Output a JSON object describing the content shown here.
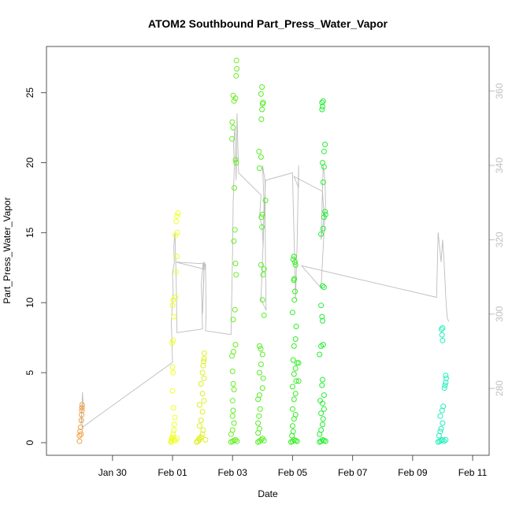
{
  "chart_data": {
    "type": "scatter",
    "title": "ATOM2 Southbound Part_Press_Water_Vapor",
    "xlabel": "Date",
    "ylabel": "Part_Press_Water_Vapor",
    "x_ticks": [
      "Jan 30",
      "Feb 01",
      "Feb 03",
      "Feb 05",
      "Feb 07",
      "Feb 09",
      "Feb 11"
    ],
    "x_tick_positions": [
      1,
      3,
      5,
      7,
      9,
      11,
      13
    ],
    "xlim": [
      -1.2,
      13.55
    ],
    "y_ticks": [
      0,
      5,
      10,
      15,
      20,
      25
    ],
    "ylim": [
      -0.9,
      28.3
    ],
    "y2_ticks": [
      280,
      300,
      320,
      340,
      360
    ],
    "y2lim": [
      262,
      372
    ],
    "colors": {
      "frame": "#555555",
      "secondary_axis": "#bfbfbf",
      "trajectory_line": "#bdbdbd"
    },
    "series": [
      {
        "color": "#f0a040",
        "points": [
          [
            -0.1,
            0.1
          ],
          [
            -0.1,
            0.5
          ],
          [
            -0.08,
            0.8
          ],
          [
            -0.06,
            1.1
          ],
          [
            -0.04,
            1.6
          ],
          [
            -0.03,
            2.0
          ],
          [
            -0.02,
            2.3
          ],
          [
            -0.02,
            2.5
          ],
          [
            -0.01,
            2.7
          ],
          [
            -0.05,
            0.6
          ]
        ]
      },
      {
        "color": "#eeff22",
        "points": [
          [
            2.95,
            0.05
          ],
          [
            2.96,
            0.1
          ],
          [
            2.97,
            0.2
          ],
          [
            2.98,
            0.3
          ],
          [
            3.0,
            0.4
          ],
          [
            3.02,
            0.6
          ],
          [
            3.04,
            0.9
          ],
          [
            3.06,
            1.3
          ],
          [
            3.08,
            1.8
          ],
          [
            3.03,
            2.5
          ],
          [
            3.0,
            3.7
          ],
          [
            3.02,
            5.0
          ],
          [
            3.0,
            5.4
          ],
          [
            2.98,
            7.1
          ],
          [
            3.02,
            7.3
          ],
          [
            3.05,
            9.0
          ],
          [
            3.0,
            9.8
          ],
          [
            3.02,
            10.2
          ],
          [
            3.1,
            10.4
          ],
          [
            3.12,
            12.2
          ],
          [
            3.14,
            13.3
          ],
          [
            3.1,
            14.8
          ],
          [
            3.16,
            15.0
          ],
          [
            3.12,
            15.8
          ],
          [
            3.15,
            16.2
          ],
          [
            3.18,
            16.4
          ],
          [
            3.05,
            0.2
          ],
          [
            3.1,
            0.15
          ],
          [
            3.15,
            0.3
          ]
        ]
      },
      {
        "color": "#ddee22",
        "points": [
          [
            3.8,
            0.05
          ],
          [
            3.85,
            0.1
          ],
          [
            3.9,
            0.2
          ],
          [
            3.95,
            0.4
          ],
          [
            4.0,
            0.6
          ],
          [
            4.02,
            0.9
          ],
          [
            3.9,
            1.2
          ],
          [
            3.95,
            1.6
          ],
          [
            4.0,
            2.2
          ],
          [
            3.9,
            2.7
          ],
          [
            4.05,
            3.0
          ],
          [
            4.0,
            3.5
          ],
          [
            3.95,
            4.2
          ],
          [
            4.05,
            4.6
          ],
          [
            4.0,
            5.0
          ],
          [
            4.02,
            5.5
          ],
          [
            4.05,
            6.0
          ],
          [
            4.06,
            6.4
          ],
          [
            4.04,
            5.8
          ],
          [
            4.1,
            0.2
          ],
          [
            3.88,
            0.3
          ]
        ]
      },
      {
        "color": "#66ee22",
        "points": [
          [
            4.95,
            0.05
          ],
          [
            5.0,
            0.1
          ],
          [
            5.05,
            0.15
          ],
          [
            5.1,
            0.2
          ],
          [
            5.15,
            0.1
          ],
          [
            4.95,
            0.6
          ],
          [
            5.0,
            0.9
          ],
          [
            5.05,
            1.4
          ],
          [
            5.0,
            1.9
          ],
          [
            5.02,
            2.3
          ],
          [
            5.0,
            3.0
          ],
          [
            5.05,
            3.8
          ],
          [
            5.02,
            4.2
          ],
          [
            5.0,
            5.1
          ],
          [
            4.98,
            6.2
          ],
          [
            5.03,
            6.5
          ],
          [
            5.1,
            7.0
          ],
          [
            5.02,
            8.8
          ],
          [
            5.08,
            9.5
          ],
          [
            5.12,
            12.0
          ],
          [
            5.1,
            12.8
          ],
          [
            5.04,
            14.4
          ],
          [
            5.08,
            15.2
          ],
          [
            5.06,
            18.2
          ],
          [
            5.1,
            20.2
          ],
          [
            5.12,
            20.0
          ],
          [
            4.98,
            21.7
          ],
          [
            5.02,
            22.5
          ],
          [
            4.99,
            22.9
          ],
          [
            5.05,
            24.4
          ],
          [
            5.02,
            24.8
          ],
          [
            5.1,
            24.6
          ],
          [
            5.12,
            26.2
          ],
          [
            5.14,
            26.7
          ],
          [
            5.13,
            27.3
          ]
        ]
      },
      {
        "color": "#55ee22",
        "points": [
          [
            5.85,
            0.05
          ],
          [
            5.9,
            0.1
          ],
          [
            5.95,
            0.2
          ],
          [
            6.0,
            0.3
          ],
          [
            6.05,
            0.15
          ],
          [
            5.85,
            0.7
          ],
          [
            5.9,
            1.0
          ],
          [
            5.85,
            1.4
          ],
          [
            5.88,
            1.9
          ],
          [
            5.92,
            2.4
          ],
          [
            5.85,
            3.1
          ],
          [
            5.9,
            3.4
          ],
          [
            6.0,
            3.9
          ],
          [
            6.02,
            4.6
          ],
          [
            5.9,
            5.0
          ],
          [
            5.95,
            5.6
          ],
          [
            6.0,
            6.3
          ],
          [
            5.94,
            6.7
          ],
          [
            5.9,
            6.9
          ],
          [
            6.05,
            9.1
          ],
          [
            6.0,
            10.2
          ],
          [
            6.02,
            12.0
          ],
          [
            5.95,
            12.7
          ],
          [
            6.05,
            12.4
          ],
          [
            5.98,
            15.4
          ],
          [
            6.1,
            17.3
          ],
          [
            5.96,
            16.1
          ],
          [
            6.0,
            16.3
          ],
          [
            5.9,
            19.6
          ],
          [
            5.95,
            20.4
          ],
          [
            5.88,
            20.8
          ],
          [
            5.96,
            23.1
          ],
          [
            5.98,
            23.8
          ],
          [
            6.0,
            24.2
          ],
          [
            6.02,
            24.3
          ],
          [
            5.95,
            24.9
          ],
          [
            5.98,
            25.4
          ]
        ]
      },
      {
        "color": "#33ee22",
        "points": [
          [
            6.95,
            0.05
          ],
          [
            7.0,
            0.1
          ],
          [
            7.05,
            0.2
          ],
          [
            7.1,
            0.15
          ],
          [
            7.15,
            0.1
          ],
          [
            6.98,
            0.5
          ],
          [
            7.02,
            0.8
          ],
          [
            7.0,
            1.2
          ],
          [
            7.05,
            1.7
          ],
          [
            7.1,
            2.0
          ],
          [
            7.0,
            2.4
          ],
          [
            7.05,
            3.1
          ],
          [
            7.1,
            3.5
          ],
          [
            7.0,
            4.0
          ],
          [
            7.12,
            4.4
          ],
          [
            7.2,
            4.4
          ],
          [
            7.05,
            4.9
          ],
          [
            7.1,
            5.3
          ],
          [
            7.15,
            5.7
          ],
          [
            7.02,
            5.9
          ],
          [
            7.2,
            5.7
          ],
          [
            7.05,
            6.9
          ],
          [
            7.1,
            7.4
          ],
          [
            7.12,
            8.3
          ],
          [
            7.0,
            9.3
          ],
          [
            7.06,
            10.2
          ],
          [
            7.08,
            10.8
          ],
          [
            7.04,
            11.6
          ],
          [
            7.06,
            11.7
          ],
          [
            7.1,
            12.7
          ],
          [
            7.02,
            13.1
          ],
          [
            7.05,
            13.3
          ],
          [
            7.08,
            12.9
          ]
        ]
      },
      {
        "color": "#22ee33",
        "points": [
          [
            7.9,
            0.05
          ],
          [
            7.95,
            0.1
          ],
          [
            8.0,
            0.2
          ],
          [
            8.05,
            0.15
          ],
          [
            8.1,
            0.1
          ],
          [
            7.9,
            0.6
          ],
          [
            7.95,
            0.9
          ],
          [
            8.0,
            1.3
          ],
          [
            8.02,
            1.7
          ],
          [
            7.95,
            2.1
          ],
          [
            8.05,
            2.4
          ],
          [
            8.0,
            2.8
          ],
          [
            7.92,
            3.0
          ],
          [
            8.05,
            3.4
          ],
          [
            7.98,
            4.1
          ],
          [
            8.0,
            4.5
          ],
          [
            7.9,
            6.3
          ],
          [
            7.95,
            6.9
          ],
          [
            8.02,
            7.0
          ],
          [
            8.0,
            8.7
          ],
          [
            7.98,
            9.0
          ],
          [
            7.95,
            9.8
          ],
          [
            8.05,
            11.1
          ],
          [
            8.0,
            11.2
          ],
          [
            7.95,
            14.9
          ],
          [
            8.02,
            15.3
          ],
          [
            8.05,
            16.1
          ],
          [
            8.1,
            16.3
          ],
          [
            8.08,
            16.5
          ],
          [
            8.02,
            18.6
          ],
          [
            8.05,
            19.7
          ],
          [
            8.0,
            20.0
          ],
          [
            8.05,
            20.8
          ],
          [
            8.08,
            21.3
          ],
          [
            7.98,
            23.8
          ],
          [
            8.0,
            24.0
          ],
          [
            8.02,
            24.4
          ],
          [
            7.98,
            24.3
          ]
        ]
      },
      {
        "color": "#22eebb",
        "points": [
          [
            11.85,
            0.05
          ],
          [
            11.9,
            0.1
          ],
          [
            11.95,
            0.15
          ],
          [
            12.0,
            0.2
          ],
          [
            12.05,
            0.1
          ],
          [
            12.1,
            0.2
          ],
          [
            11.88,
            0.5
          ],
          [
            11.92,
            0.8
          ],
          [
            11.95,
            1.0
          ],
          [
            12.0,
            1.4
          ],
          [
            11.92,
            1.9
          ],
          [
            11.98,
            2.3
          ],
          [
            12.02,
            2.6
          ],
          [
            12.06,
            3.9
          ],
          [
            12.08,
            4.1
          ],
          [
            12.1,
            4.3
          ],
          [
            12.12,
            4.6
          ],
          [
            12.1,
            4.8
          ],
          [
            12.0,
            7.3
          ],
          [
            11.98,
            7.7
          ],
          [
            11.96,
            8.1
          ],
          [
            12.0,
            8.2
          ]
        ]
      }
    ],
    "trajectory": [
      [
        -0.05,
        270.5
      ],
      [
        -0.02,
        275
      ],
      [
        0.0,
        279
      ],
      [
        0.02,
        276
      ],
      [
        -0.03,
        273
      ],
      [
        -0.01,
        269.5
      ],
      [
        3.0,
        287
      ],
      [
        2.96,
        298
      ],
      [
        3.02,
        306
      ],
      [
        3.0,
        311
      ],
      [
        3.06,
        314
      ],
      [
        3.04,
        318
      ],
      [
        3.08,
        322
      ],
      [
        3.1,
        316
      ],
      [
        3.12,
        310
      ],
      [
        3.15,
        295
      ],
      [
        4.0,
        296
      ],
      [
        3.96,
        308
      ],
      [
        4.02,
        314
      ],
      [
        4.05,
        311
      ],
      [
        4.0,
        300
      ],
      [
        4.02,
        306
      ],
      [
        4.06,
        314
      ],
      [
        4.1,
        312
      ],
      [
        3.1,
        314
      ],
      [
        4.1,
        313.5
      ],
      [
        4.12,
        300
      ],
      [
        4.1,
        295.5
      ],
      [
        4.95,
        294.5
      ],
      [
        5.0,
        316
      ],
      [
        5.02,
        330
      ],
      [
        5.06,
        340
      ],
      [
        5.03,
        346
      ],
      [
        5.08,
        350
      ],
      [
        5.1,
        343
      ],
      [
        5.12,
        336
      ],
      [
        5.15,
        354
      ],
      [
        5.2,
        338
      ],
      [
        5.95,
        332
      ],
      [
        5.9,
        326
      ],
      [
        5.98,
        324
      ],
      [
        6.02,
        318
      ],
      [
        6.05,
        330
      ],
      [
        6.0,
        340
      ],
      [
        6.08,
        336
      ],
      [
        6.1,
        312
      ],
      [
        6.12,
        301
      ],
      [
        5.95,
        304
      ],
      [
        6.1,
        336
      ],
      [
        7.0,
        338
      ],
      [
        7.02,
        330
      ],
      [
        7.06,
        318
      ],
      [
        7.08,
        312
      ],
      [
        7.1,
        304
      ],
      [
        7.15,
        318
      ],
      [
        7.2,
        340
      ],
      [
        7.2,
        334
      ],
      [
        7.05,
        337
      ],
      [
        8.0,
        333
      ],
      [
        8.05,
        326
      ],
      [
        7.95,
        320
      ],
      [
        8.02,
        340
      ],
      [
        8.08,
        336
      ],
      [
        8.1,
        330
      ],
      [
        7.95,
        307
      ],
      [
        7.3,
        313
      ],
      [
        11.8,
        304.5
      ],
      [
        11.85,
        322
      ],
      [
        11.9,
        318
      ],
      [
        11.95,
        314
      ],
      [
        12.0,
        320
      ],
      [
        12.05,
        314
      ],
      [
        12.1,
        305
      ],
      [
        12.15,
        299
      ],
      [
        12.2,
        298
      ]
    ]
  }
}
